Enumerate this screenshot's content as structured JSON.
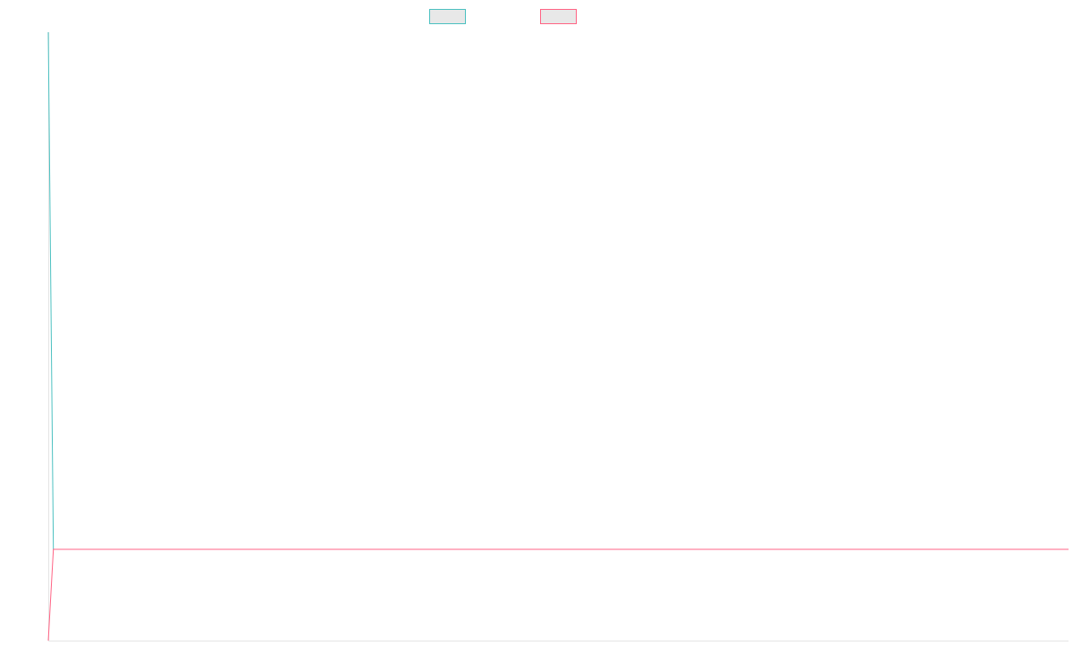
{
  "chart_data": {
    "type": "line",
    "title": "",
    "xlabel": "",
    "ylabel": "",
    "legend_placement": "top-center",
    "grid": false,
    "x": [
      0,
      1,
      2
    ],
    "xlim": [
      0,
      200
    ],
    "ylim": [
      0,
      100
    ],
    "series": [
      {
        "name": "",
        "color": "#4bc0c0",
        "values": [
          100,
          15,
          15
        ]
      },
      {
        "name": "",
        "color": "#ff6384",
        "values": [
          0,
          15,
          15
        ]
      }
    ]
  }
}
